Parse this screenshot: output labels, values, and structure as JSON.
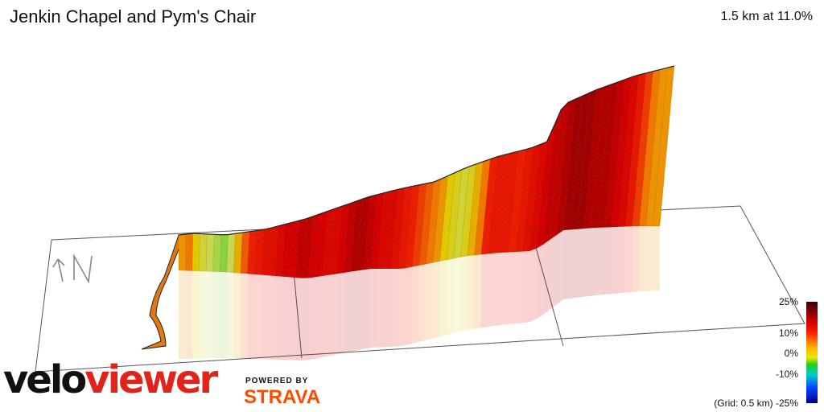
{
  "header": {
    "title": "Jenkin Chapel and Pym's Chair",
    "stat": "1.5 km at 11.0%"
  },
  "chart_data": {
    "type": "area",
    "title": "Jenkin Chapel and Pym's Chair",
    "subtitle": "1.5 km at 11.0%",
    "xlabel": "",
    "ylabel": "",
    "grid": true,
    "grid_note": "(Grid: 0.5 km)",
    "compass_label": "N",
    "segment_gradients_pct": [
      10,
      11,
      8,
      6,
      5,
      4,
      3,
      5,
      9,
      12,
      14,
      15,
      16,
      16,
      17,
      18,
      18,
      19,
      19,
      18,
      18,
      17,
      17,
      18,
      19,
      20,
      20,
      19,
      18,
      17,
      17,
      16,
      15,
      14,
      13,
      12,
      11,
      10,
      8,
      7,
      6,
      7,
      9,
      11,
      14,
      15,
      15,
      15,
      14,
      15,
      16,
      17,
      18,
      19,
      19,
      20,
      21,
      21,
      21,
      20,
      20,
      20,
      19,
      18,
      17,
      15,
      13,
      11,
      10,
      10
    ],
    "legend": {
      "labels": [
        "25%",
        "10%",
        "0%",
        "-10%",
        "-25%"
      ],
      "colors": [
        "#3a0000",
        "#c40000",
        "#ff1a00",
        "#ffb000",
        "#e8e800",
        "#22cc22",
        "#00cccc",
        "#0044ff",
        "#00008a"
      ]
    }
  },
  "branding": {
    "logo_velo": "velo",
    "logo_viewer": "viewer",
    "powered_by": "POWERED BY",
    "strava": "STRAVA"
  }
}
